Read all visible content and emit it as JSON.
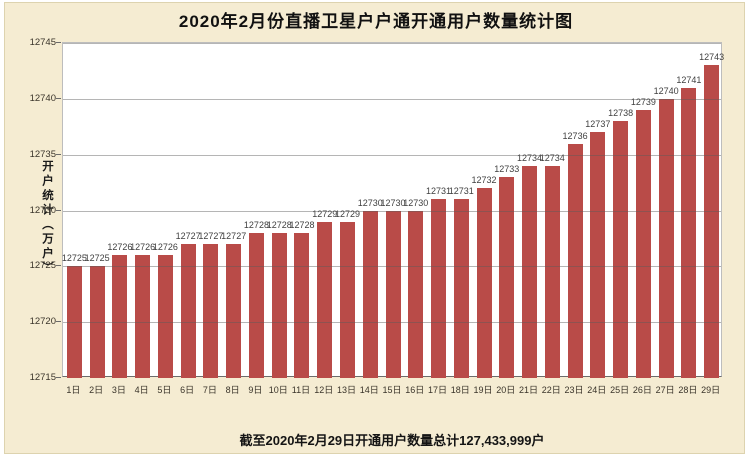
{
  "colors": {
    "background": "#F5ECD2",
    "bar": "#B94B48",
    "grid": "#5A5A5A",
    "axis": "#6B6B6B",
    "plot_border": "#BDBDBD",
    "label_text": "#3F3F3F"
  },
  "chart_data": {
    "type": "bar",
    "title": "2020年2月份直播卫星户户通开通用户数量统计图",
    "ylabel": "开户统计（万户）",
    "xlabel": "",
    "caption": "截至2020年2月29日开通用户数量总计127,433,999户",
    "categories": [
      "1日",
      "2日",
      "3日",
      "4日",
      "5日",
      "6日",
      "7日",
      "8日",
      "9日",
      "10日",
      "11日",
      "12日",
      "13日",
      "14日",
      "15日",
      "16日",
      "17日",
      "18日",
      "19日",
      "20日",
      "21日",
      "22日",
      "23日",
      "24日",
      "25日",
      "26日",
      "27日",
      "28日",
      "29日"
    ],
    "values": [
      12725,
      12725,
      12726,
      12726,
      12726,
      12727,
      12727,
      12727,
      12728,
      12728,
      12728,
      12729,
      12729,
      12730,
      12730,
      12730,
      12731,
      12731,
      12732,
      12733,
      12734,
      12734,
      12736,
      12737,
      12738,
      12739,
      12740,
      12741,
      12743
    ],
    "ylim": [
      12715,
      12745
    ],
    "yticks": [
      12715,
      12720,
      12725,
      12730,
      12735,
      12740,
      12745
    ],
    "grid": true,
    "legend_position": "none",
    "data_labels": true
  }
}
